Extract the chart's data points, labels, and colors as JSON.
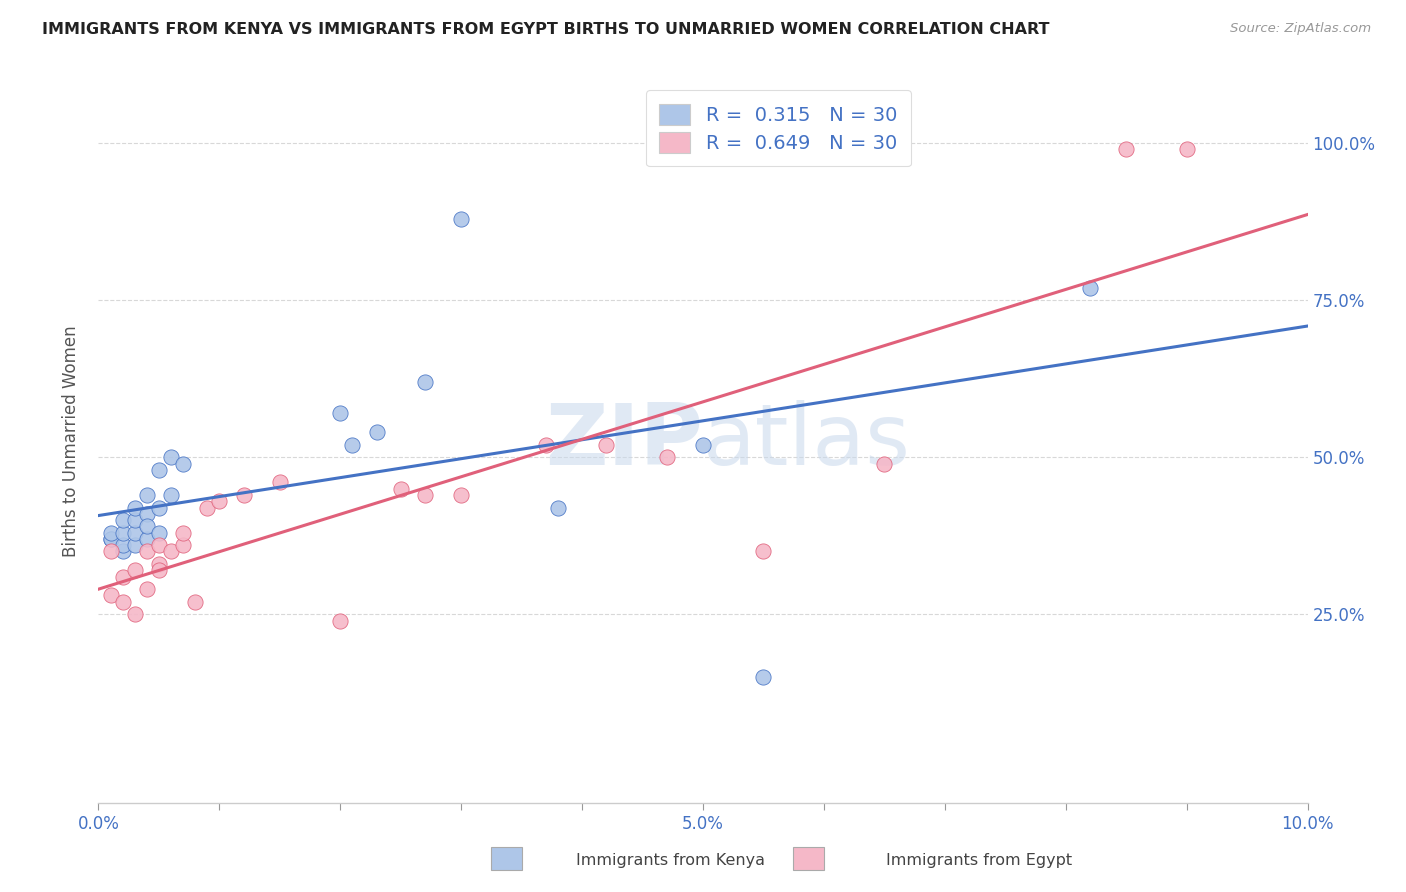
{
  "title": "IMMIGRANTS FROM KENYA VS IMMIGRANTS FROM EGYPT BIRTHS TO UNMARRIED WOMEN CORRELATION CHART",
  "source": "Source: ZipAtlas.com",
  "ylabel": "Births to Unmarried Women",
  "xlim": [
    0.0,
    0.1
  ],
  "ylim": [
    -0.05,
    1.1
  ],
  "ytick_labels": [
    "25.0%",
    "50.0%",
    "75.0%",
    "100.0%"
  ],
  "ytick_values": [
    0.25,
    0.5,
    0.75,
    1.0
  ],
  "xtick_labels": [
    "0.0%",
    "",
    "",
    "",
    "",
    "5.0%",
    "",
    "",
    "",
    "",
    "10.0%"
  ],
  "xtick_values": [
    0.0,
    0.01,
    0.02,
    0.03,
    0.04,
    0.05,
    0.06,
    0.07,
    0.08,
    0.09,
    0.1
  ],
  "watermark_zip": "ZIP",
  "watermark_atlas": "atlas",
  "kenya_color": "#aec6e8",
  "egypt_color": "#f5b8c8",
  "kenya_line_color": "#4472c4",
  "egypt_line_color": "#e0607a",
  "kenya_R": "0.315",
  "kenya_N": "30",
  "egypt_R": "0.649",
  "egypt_N": "30",
  "legend_label_kenya": "Immigrants from Kenya",
  "legend_label_egypt": "Immigrants from Egypt",
  "kenya_x": [
    0.001,
    0.001,
    0.001,
    0.002,
    0.002,
    0.002,
    0.002,
    0.003,
    0.003,
    0.003,
    0.003,
    0.004,
    0.004,
    0.004,
    0.004,
    0.005,
    0.005,
    0.005,
    0.006,
    0.006,
    0.007,
    0.02,
    0.021,
    0.023,
    0.027,
    0.03,
    0.038,
    0.05,
    0.055,
    0.082
  ],
  "kenya_y": [
    0.37,
    0.37,
    0.38,
    0.35,
    0.36,
    0.38,
    0.4,
    0.36,
    0.38,
    0.4,
    0.42,
    0.37,
    0.41,
    0.44,
    0.39,
    0.38,
    0.42,
    0.48,
    0.44,
    0.5,
    0.49,
    0.57,
    0.52,
    0.54,
    0.62,
    0.88,
    0.42,
    0.52,
    0.15,
    0.77
  ],
  "egypt_x": [
    0.001,
    0.001,
    0.002,
    0.002,
    0.003,
    0.003,
    0.004,
    0.004,
    0.005,
    0.005,
    0.005,
    0.006,
    0.007,
    0.007,
    0.008,
    0.009,
    0.01,
    0.012,
    0.015,
    0.02,
    0.025,
    0.027,
    0.03,
    0.037,
    0.042,
    0.047,
    0.055,
    0.065,
    0.085,
    0.09
  ],
  "egypt_y": [
    0.35,
    0.28,
    0.27,
    0.31,
    0.25,
    0.32,
    0.29,
    0.35,
    0.33,
    0.36,
    0.32,
    0.35,
    0.36,
    0.38,
    0.27,
    0.42,
    0.43,
    0.44,
    0.46,
    0.24,
    0.45,
    0.44,
    0.44,
    0.52,
    0.52,
    0.5,
    0.35,
    0.49,
    0.99,
    0.99
  ],
  "background_color": "#ffffff",
  "grid_color": "#d8d8d8"
}
